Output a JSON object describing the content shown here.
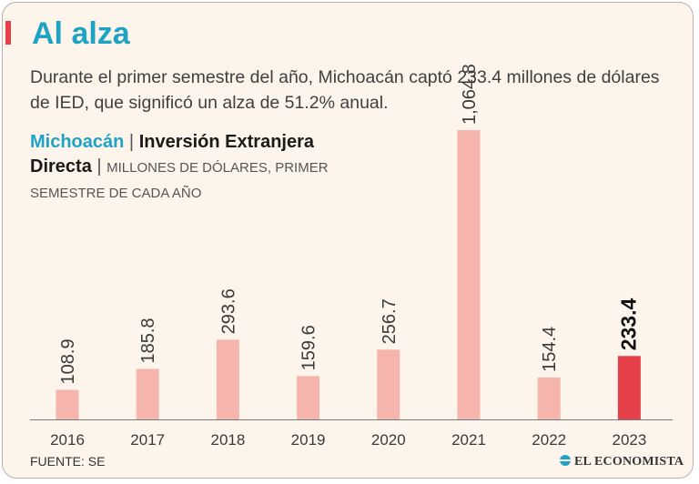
{
  "header": {
    "title": "Al alza",
    "subtitle": "Durante el primer semestre del año, Michoacán captó 233.4 millones de dólares de IED, que significó un alza de  51.2% anual."
  },
  "chart_heading": {
    "place": "Michoacán",
    "metric": "Inversión Extranjera Directa",
    "units": "MILLONES DE DÓLARES, PRIMER SEMESTRE DE CADA AÑO"
  },
  "chart_data": {
    "type": "bar",
    "title": "Michoacán | Inversión Extranjera Directa",
    "ylabel": "Millones de dólares, primer semestre de cada año",
    "xlabel": "",
    "categories": [
      "2016",
      "2017",
      "2018",
      "2019",
      "2020",
      "2021",
      "2022",
      "2023"
    ],
    "values": [
      108.9,
      185.8,
      293.6,
      159.6,
      256.7,
      1064.8,
      154.4,
      233.4
    ],
    "value_labels": [
      "108.9",
      "185.8",
      "293.6",
      "159.6",
      "256.7",
      "1,064.8",
      "154.4",
      "233.4"
    ],
    "highlight_index": 7,
    "ylim": [
      0,
      1100
    ],
    "grid": false,
    "colors": {
      "bar": "#f6b5ac",
      "highlight": "#e6414b",
      "axis": "#7a7a7a"
    }
  },
  "footer": {
    "source": "FUENTE: SE",
    "brand": "EL ECONOMISTA"
  }
}
